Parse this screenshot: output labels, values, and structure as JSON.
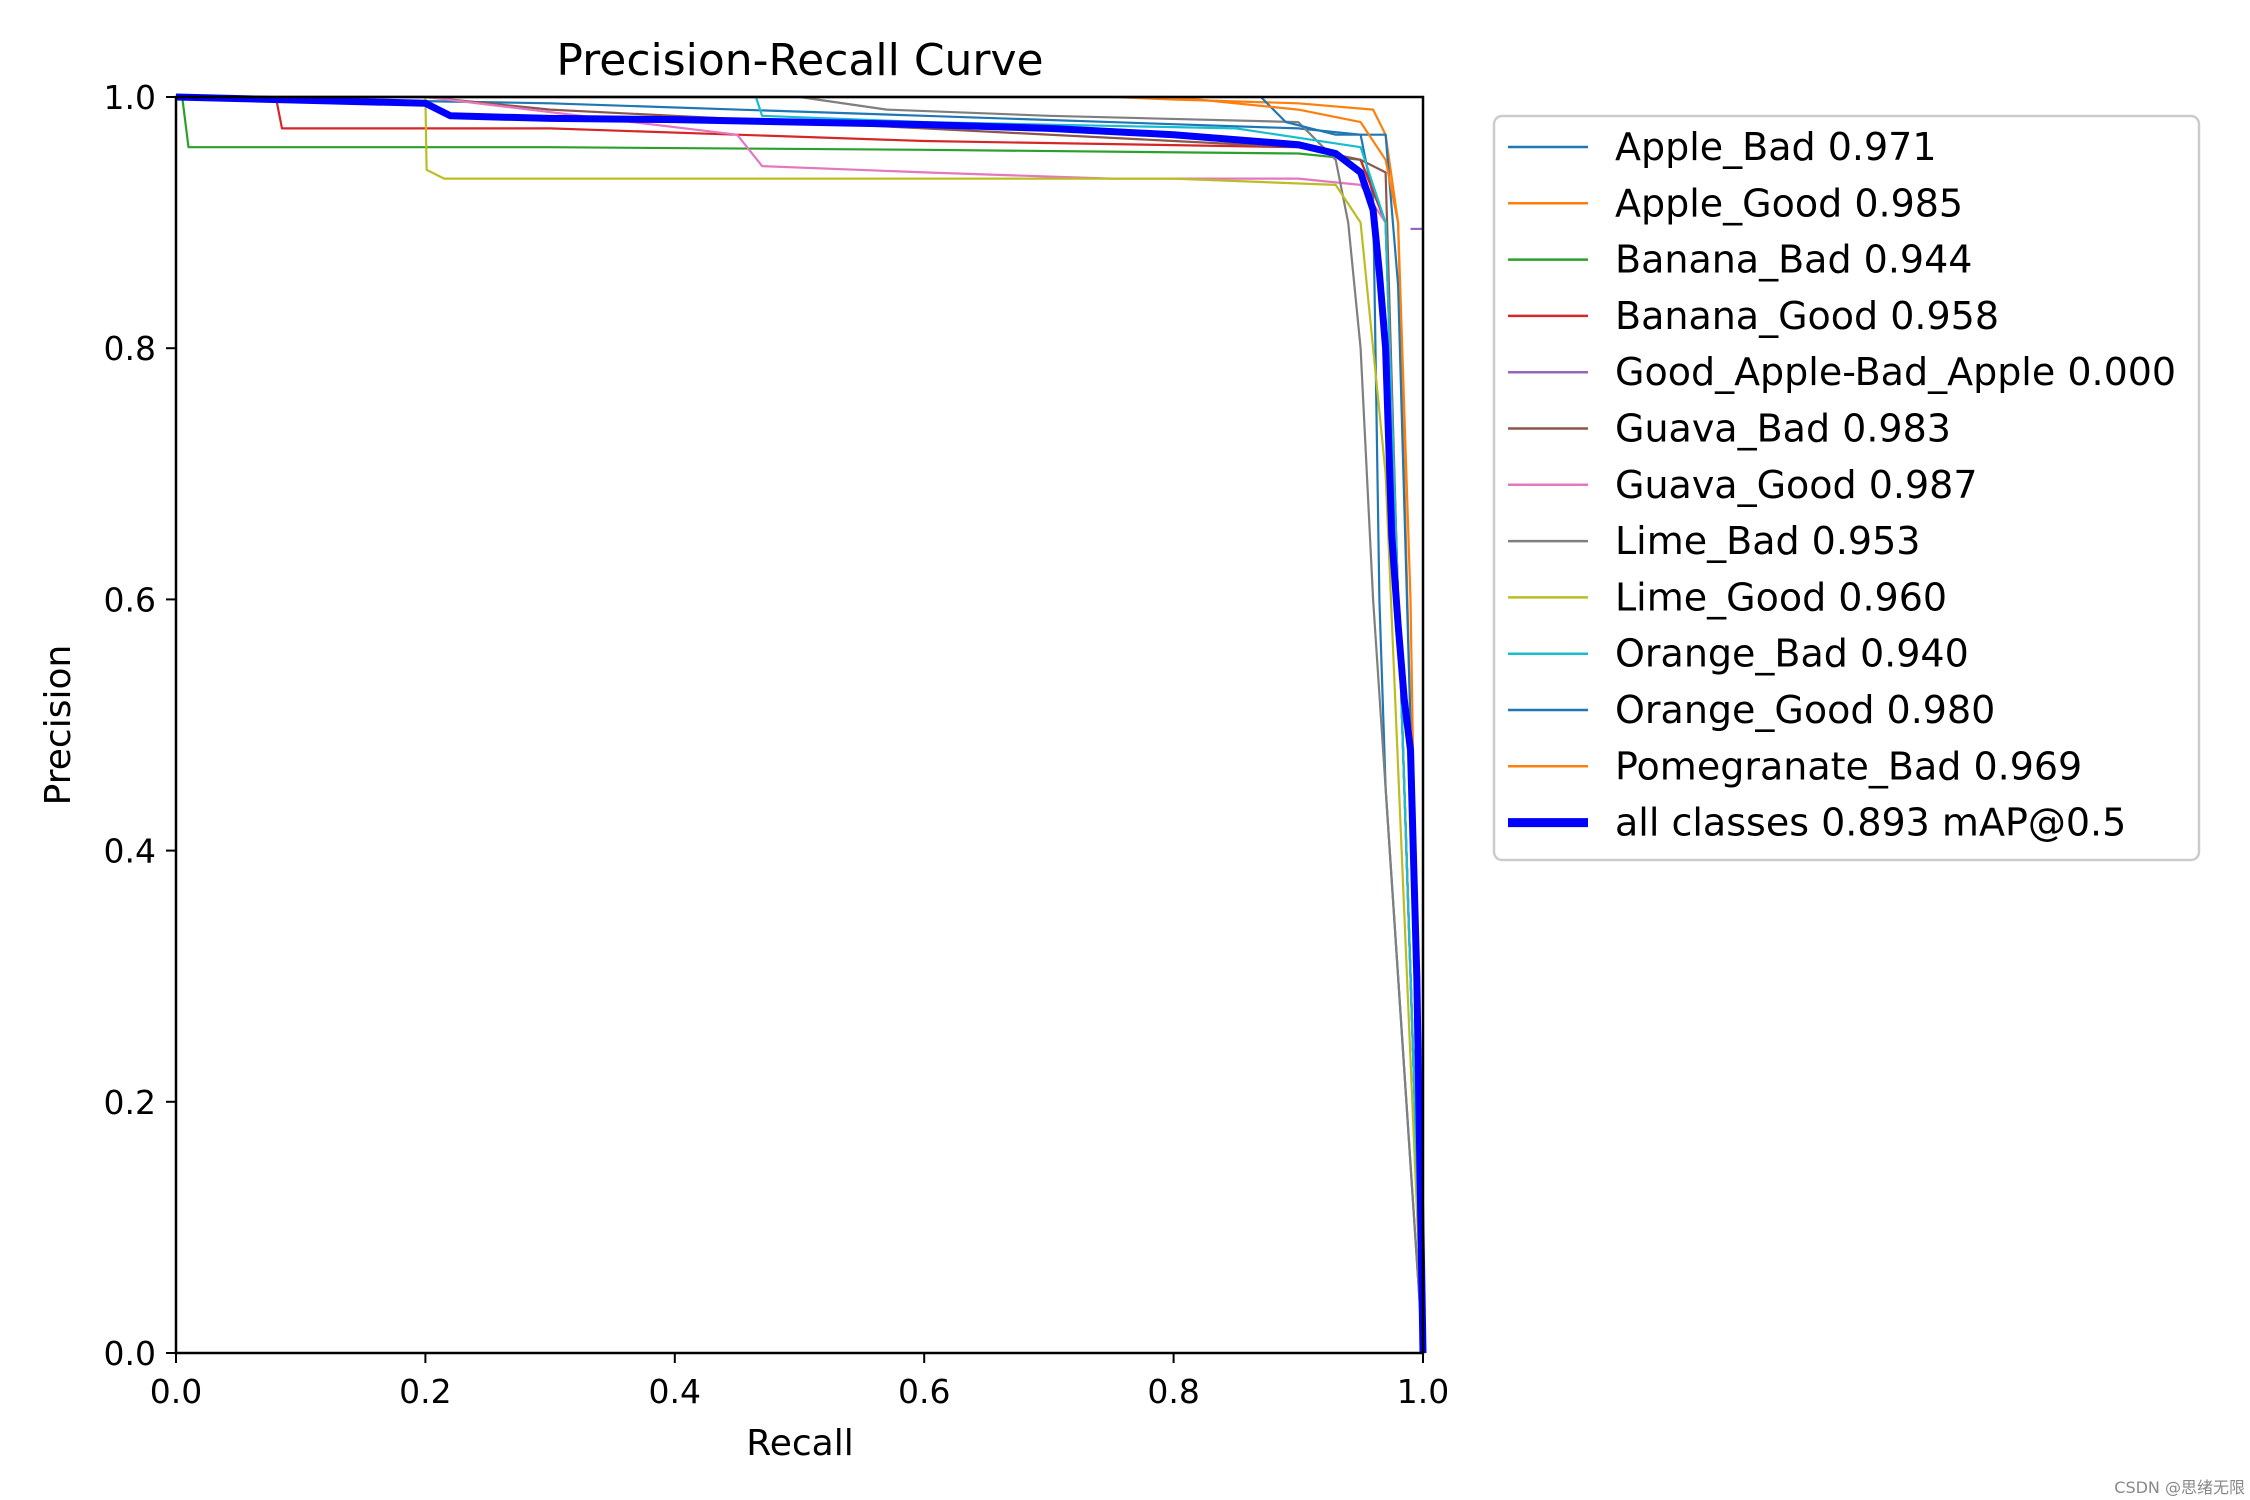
{
  "chart_data": {
    "type": "line",
    "title": "Precision-Recall Curve",
    "xlabel": "Recall",
    "ylabel": "Precision",
    "xlim": [
      0,
      1
    ],
    "ylim": [
      0,
      1
    ],
    "xticks": [
      "0.0",
      "0.2",
      "0.4",
      "0.6",
      "0.8",
      "1.0"
    ],
    "yticks": [
      "0.0",
      "0.2",
      "0.4",
      "0.6",
      "0.8",
      "1.0"
    ],
    "grid": false,
    "legend_position": "outside-right",
    "series": [
      {
        "name": "Apple_Bad 0.971",
        "color": "#1f77b4",
        "x": [
          0,
          0.005,
          0.3,
          0.6,
          0.9,
          0.95,
          0.96,
          0.965,
          0.97,
          1.0
        ],
        "y": [
          1,
          1,
          0.995,
          0.985,
          0.975,
          0.97,
          0.92,
          0.6,
          0.45,
          0
        ]
      },
      {
        "name": "Apple_Good 0.985",
        "color": "#ff7f0e",
        "x": [
          0,
          0.74,
          0.75,
          0.8,
          0.9,
          0.96,
          0.97,
          0.98,
          0.99,
          1.0
        ],
        "y": [
          1,
          1,
          1,
          0.998,
          0.995,
          0.99,
          0.97,
          0.9,
          0.5,
          0
        ]
      },
      {
        "name": "Banana_Bad 0.944",
        "color": "#2ca02c",
        "x": [
          0,
          0.005,
          0.01,
          0.3,
          0.6,
          0.9,
          0.95,
          0.97,
          0.98,
          1.0
        ],
        "y": [
          1,
          1,
          0.96,
          0.96,
          0.958,
          0.955,
          0.95,
          0.9,
          0.6,
          0
        ]
      },
      {
        "name": "Banana_Good 0.958",
        "color": "#d62728",
        "x": [
          0,
          0.08,
          0.085,
          0.3,
          0.6,
          0.9,
          0.95,
          0.97,
          0.98,
          1.0
        ],
        "y": [
          1,
          1,
          0.975,
          0.975,
          0.965,
          0.96,
          0.95,
          0.9,
          0.6,
          0
        ]
      },
      {
        "name": "Good_Apple-Bad_Apple 0.000",
        "color": "#9467bd",
        "x": [
          0.99,
          1.0
        ],
        "y": [
          0.895,
          0.895
        ]
      },
      {
        "name": "Guava_Bad 0.983",
        "color": "#8c564b",
        "x": [
          0,
          0.2,
          0.3,
          0.6,
          0.8,
          0.9,
          0.95,
          0.97,
          0.98,
          1.0
        ],
        "y": [
          1,
          1,
          0.99,
          0.975,
          0.965,
          0.96,
          0.95,
          0.94,
          0.6,
          0
        ]
      },
      {
        "name": "Guava_Good 0.987",
        "color": "#e377c2",
        "x": [
          0,
          0.2,
          0.45,
          0.47,
          0.6,
          0.75,
          0.9,
          0.95,
          0.97,
          0.98,
          1.0
        ],
        "y": [
          1,
          1,
          0.97,
          0.945,
          0.94,
          0.935,
          0.935,
          0.93,
          0.9,
          0.6,
          0
        ]
      },
      {
        "name": "Lime_Bad 0.953",
        "color": "#7f7f7f",
        "x": [
          0,
          0.29,
          0.5,
          0.57,
          0.7,
          0.9,
          0.93,
          0.94,
          0.95,
          0.96,
          1.0
        ],
        "y": [
          1,
          1,
          1,
          0.99,
          0.985,
          0.98,
          0.95,
          0.9,
          0.8,
          0.6,
          0
        ]
      },
      {
        "name": "Lime_Good 0.960",
        "color": "#bcbd22",
        "x": [
          0,
          0.2,
          0.201,
          0.215,
          0.5,
          0.8,
          0.93,
          0.95,
          0.97,
          1.0
        ],
        "y": [
          1,
          1,
          0.942,
          0.935,
          0.935,
          0.935,
          0.93,
          0.9,
          0.7,
          0
        ]
      },
      {
        "name": "Orange_Bad 0.940",
        "color": "#17becf",
        "x": [
          0,
          0.465,
          0.47,
          0.6,
          0.85,
          0.95,
          0.97,
          0.98,
          1.0
        ],
        "y": [
          1,
          1,
          0.985,
          0.98,
          0.975,
          0.96,
          0.9,
          0.6,
          0
        ]
      },
      {
        "name": "Orange_Good 0.980",
        "color": "#1f77b4",
        "x": [
          0,
          0.87,
          0.89,
          0.93,
          0.97,
          0.98,
          0.99,
          1.0
        ],
        "y": [
          1,
          1,
          0.98,
          0.97,
          0.97,
          0.85,
          0.5,
          0
        ]
      },
      {
        "name": "Pomegranate_Bad 0.969",
        "color": "#ff7f0e",
        "x": [
          0,
          0.8,
          0.9,
          0.95,
          0.97,
          0.98,
          0.99,
          1.0
        ],
        "y": [
          1,
          1,
          0.99,
          0.98,
          0.95,
          0.9,
          0.6,
          0
        ]
      },
      {
        "name": "all classes 0.893 mAP@0.5",
        "color": "#0000ff",
        "bold": true,
        "x": [
          0,
          0.2,
          0.22,
          0.3,
          0.4,
          0.5,
          0.6,
          0.7,
          0.8,
          0.9,
          0.93,
          0.95,
          0.96,
          0.965,
          0.97,
          0.975,
          0.98,
          0.985,
          0.99,
          0.995,
          1.0
        ],
        "y": [
          1,
          0.995,
          0.985,
          0.983,
          0.982,
          0.98,
          0.978,
          0.975,
          0.97,
          0.962,
          0.955,
          0.94,
          0.91,
          0.86,
          0.8,
          0.65,
          0.58,
          0.52,
          0.48,
          0.3,
          0
        ]
      }
    ]
  },
  "watermark": "CSDN @思绪无限"
}
